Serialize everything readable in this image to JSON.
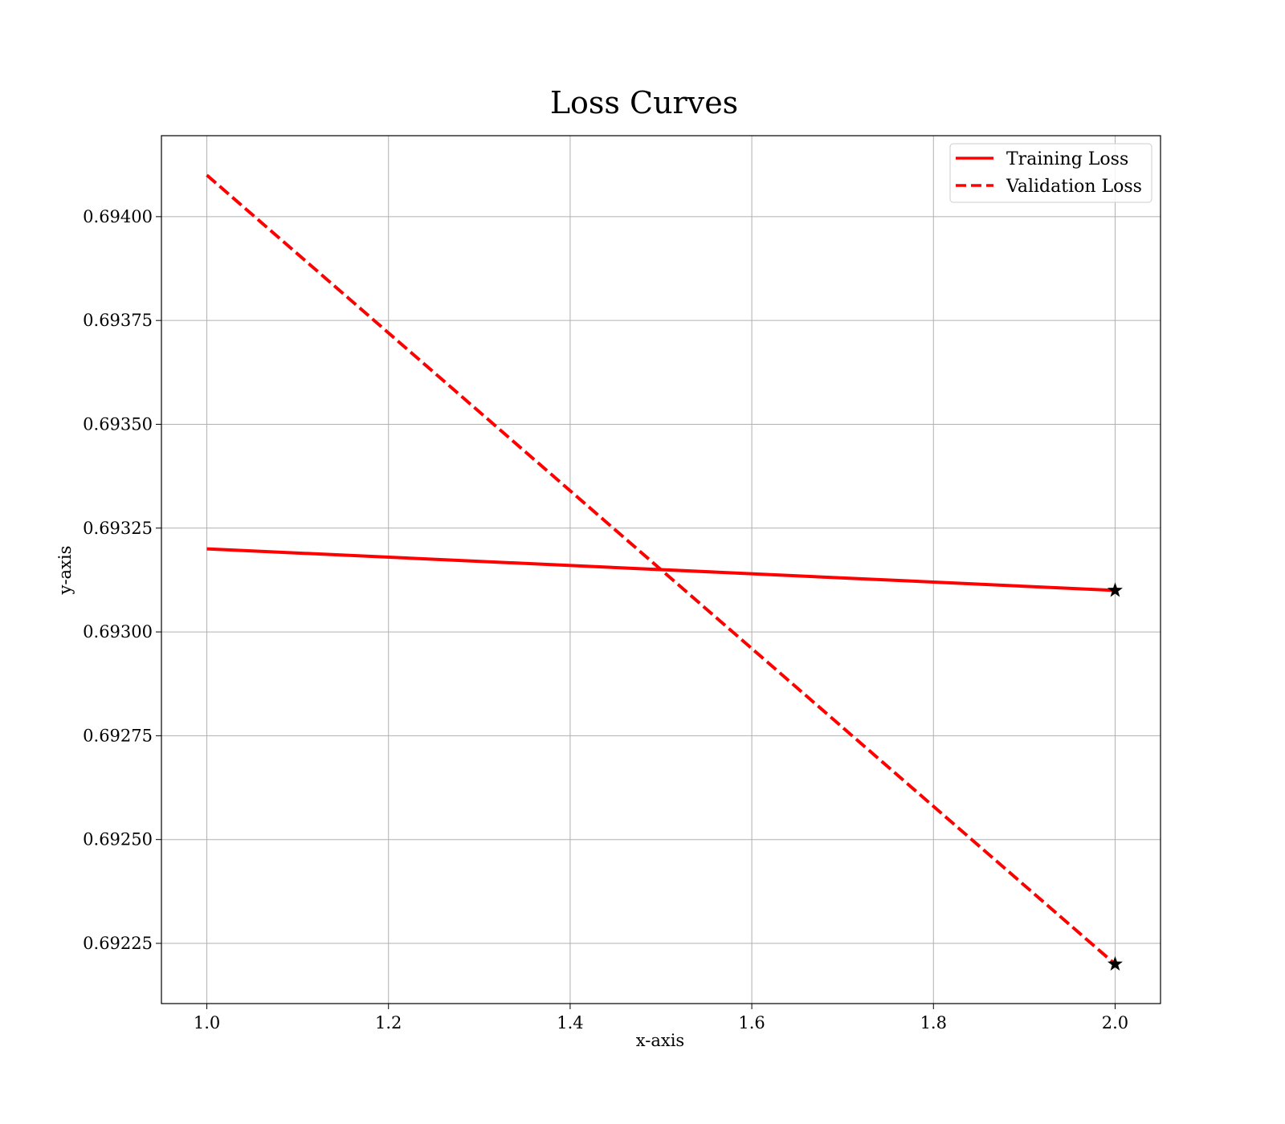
{
  "chart_data": {
    "type": "line",
    "title": "Loss Curves",
    "xlabel": "x-axis",
    "ylabel": "y-axis",
    "xlim": [
      0.95,
      2.05
    ],
    "ylim": [
      0.692105,
      0.694195
    ],
    "x_ticks": [
      1.0,
      1.2,
      1.4,
      1.6,
      1.8,
      2.0
    ],
    "x_tick_labels": [
      "1.0",
      "1.2",
      "1.4",
      "1.6",
      "1.8",
      "2.0"
    ],
    "y_ticks": [
      0.69225,
      0.6925,
      0.69275,
      0.693,
      0.69325,
      0.6935,
      0.69375,
      0.694
    ],
    "y_tick_labels": [
      "0.69225",
      "0.69250",
      "0.69275",
      "0.69300",
      "0.69325",
      "0.69350",
      "0.69375",
      "0.69400"
    ],
    "grid": true,
    "legend_position": "top-right",
    "series": [
      {
        "name": "Training Loss",
        "x": [
          1,
          2
        ],
        "y": [
          0.6932,
          0.6931
        ],
        "color": "#ff0000",
        "style": "solid",
        "end_marker": "star"
      },
      {
        "name": "Validation Loss",
        "x": [
          1,
          2
        ],
        "y": [
          0.6941,
          0.6922
        ],
        "color": "#ff0000",
        "style": "dashed",
        "end_marker": "star"
      }
    ],
    "marker_color": "#000000"
  }
}
